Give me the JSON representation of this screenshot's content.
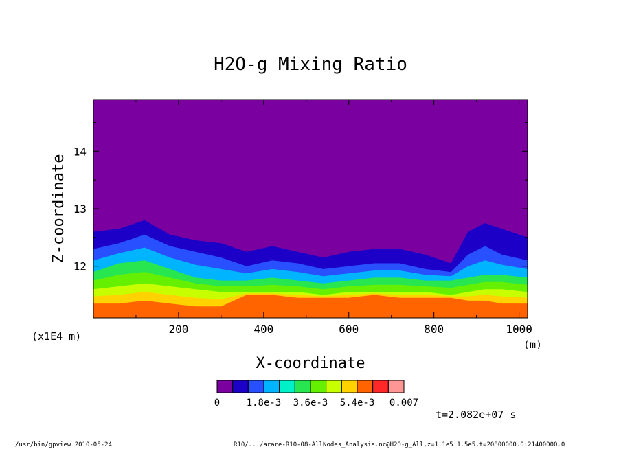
{
  "chart_data": {
    "type": "heatmap",
    "title": "H2O-g Mixing Ratio",
    "xlabel": "X-coordinate",
    "ylabel": "Z-coordinate",
    "x_unit": "(m)",
    "y_unit": "(x1E4 m)",
    "xlim": [
      0,
      1020
    ],
    "ylim": [
      11.1,
      14.9
    ],
    "x_ticks": [
      200,
      400,
      600,
      800,
      1000
    ],
    "y_ticks": [
      12,
      13,
      14
    ],
    "colorbar": {
      "colors": [
        "#7b00a0",
        "#1c00c8",
        "#2850ff",
        "#00b4ff",
        "#00f0c8",
        "#28e650",
        "#64f000",
        "#c8ff00",
        "#ffd200",
        "#ff6400",
        "#ff2828",
        "#ff9696"
      ],
      "tick_labels": [
        "0",
        "1.8e-3",
        "3.6e-3",
        "5.4e-3",
        "0.007"
      ],
      "range": [
        0,
        0.007
      ]
    },
    "boundaries": {
      "x": [
        0,
        60,
        120,
        180,
        240,
        300,
        360,
        420,
        480,
        540,
        600,
        660,
        720,
        780,
        840,
        880,
        920,
        960,
        1020
      ],
      "z_top_of_water": [
        12.6,
        12.65,
        12.8,
        12.55,
        12.45,
        12.4,
        12.25,
        12.35,
        12.25,
        12.15,
        12.25,
        12.3,
        12.3,
        12.2,
        12.05,
        12.6,
        12.75,
        12.65,
        12.5
      ],
      "z_high": [
        12.3,
        12.4,
        12.55,
        12.35,
        12.25,
        12.15,
        12.0,
        12.1,
        12.05,
        11.95,
        12.0,
        12.05,
        12.05,
        11.95,
        11.9,
        12.2,
        12.35,
        12.2,
        12.1
      ],
      "z_mid": [
        11.9,
        12.05,
        12.1,
        11.95,
        11.8,
        11.75,
        11.75,
        11.8,
        11.75,
        11.7,
        11.75,
        11.8,
        11.8,
        11.75,
        11.75,
        11.8,
        11.85,
        11.85,
        11.8
      ],
      "z_low": [
        11.6,
        11.65,
        11.7,
        11.65,
        11.6,
        11.55,
        11.55,
        11.55,
        11.55,
        11.5,
        11.55,
        11.55,
        11.55,
        11.55,
        11.5,
        11.55,
        11.6,
        11.6,
        11.55
      ],
      "z_bottom": [
        11.35,
        11.35,
        11.4,
        11.35,
        11.3,
        11.3,
        11.5,
        11.5,
        11.45,
        11.45,
        11.45,
        11.5,
        11.45,
        11.45,
        11.45,
        11.4,
        11.4,
        11.35,
        11.35
      ]
    }
  },
  "time_label": "t=2.082e+07 s",
  "footer_left": "/usr/bin/gpview  2010-05-24",
  "footer_right": "R10/.../arare-R10-08-AllNodes_Analysis.nc@H2O-g_All,z=1.1e5:1.5e5,t=20800000.0:21400000.0"
}
